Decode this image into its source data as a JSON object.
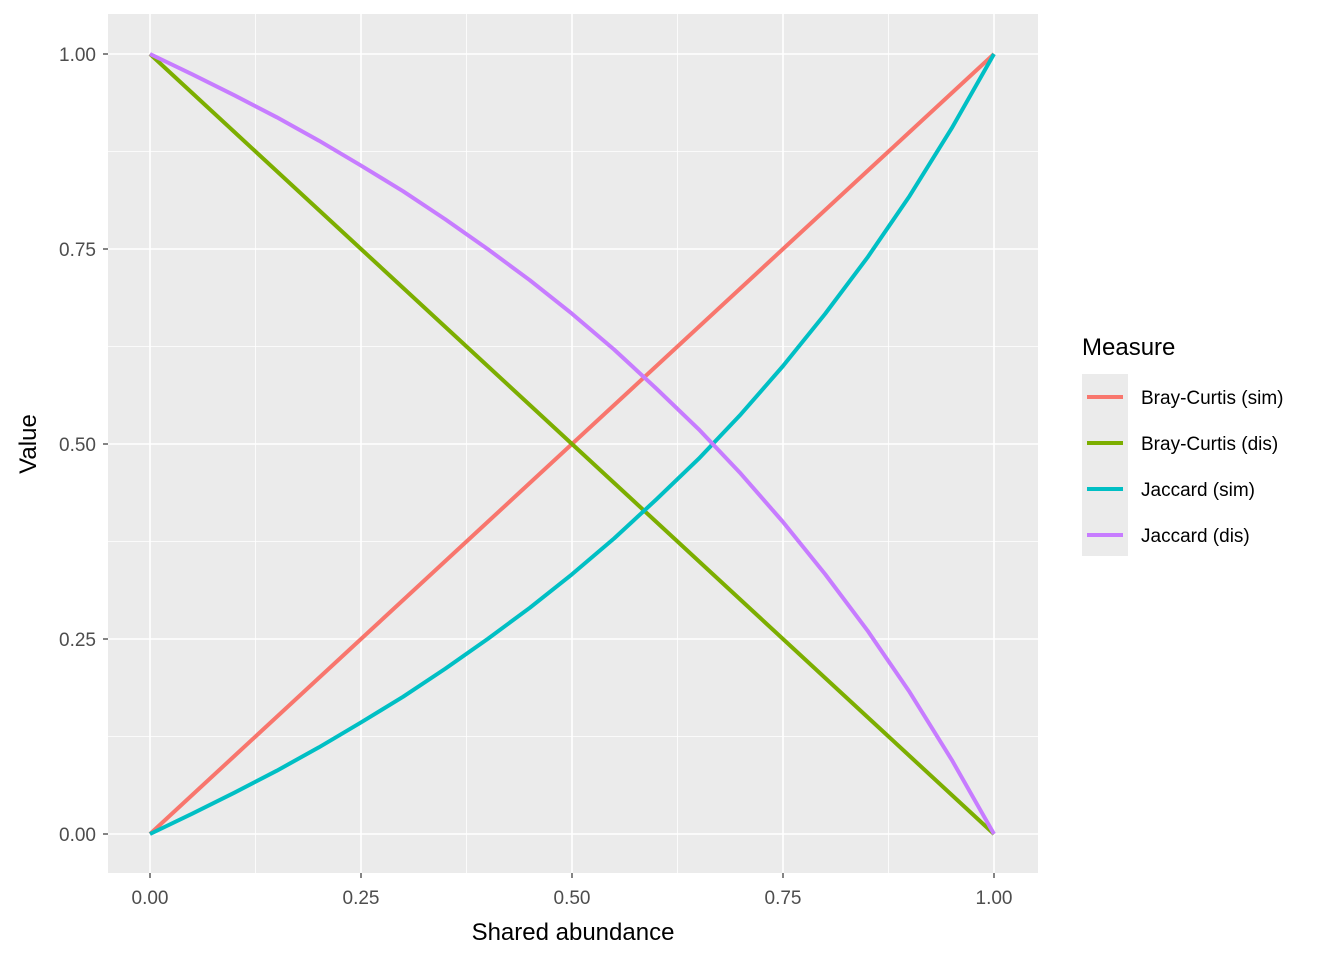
{
  "chart_data": {
    "type": "line",
    "xlabel": "Shared abundance",
    "ylabel": "Value",
    "xlim": [
      0,
      1
    ],
    "ylim": [
      0,
      1
    ],
    "x_ticks": [
      "0.00",
      "0.25",
      "0.50",
      "0.75",
      "1.00"
    ],
    "y_ticks": [
      "0.00",
      "0.25",
      "0.50",
      "0.75",
      "1.00"
    ],
    "grid": true,
    "legend_title": "Measure",
    "legend_position": "right",
    "x": [
      0,
      0.05,
      0.1,
      0.15,
      0.2,
      0.25,
      0.3,
      0.35,
      0.4,
      0.45,
      0.5,
      0.55,
      0.6,
      0.65,
      0.7,
      0.75,
      0.8,
      0.85,
      0.9,
      0.95,
      1
    ],
    "series": [
      {
        "name": "Bray-Curtis (sim)",
        "color": "#F8766D",
        "values": [
          0,
          0.05,
          0.1,
          0.15,
          0.2,
          0.25,
          0.3,
          0.35,
          0.4,
          0.45,
          0.5,
          0.55,
          0.6,
          0.65,
          0.7,
          0.75,
          0.8,
          0.85,
          0.9,
          0.95,
          1
        ]
      },
      {
        "name": "Bray-Curtis (dis)",
        "color": "#7CAE00",
        "values": [
          1,
          0.95,
          0.9,
          0.85,
          0.8,
          0.75,
          0.7,
          0.65,
          0.6,
          0.55,
          0.5,
          0.45,
          0.4,
          0.35,
          0.3,
          0.25,
          0.2,
          0.15,
          0.1,
          0.05,
          0
        ]
      },
      {
        "name": "Jaccard (sim)",
        "color": "#00BFC4",
        "values": [
          0,
          0.026,
          0.053,
          0.081,
          0.111,
          0.143,
          0.176,
          0.212,
          0.25,
          0.29,
          0.333,
          0.379,
          0.429,
          0.481,
          0.538,
          0.6,
          0.667,
          0.739,
          0.818,
          0.905,
          1
        ]
      },
      {
        "name": "Jaccard (dis)",
        "color": "#C77CFF",
        "values": [
          1,
          0.974,
          0.947,
          0.919,
          0.889,
          0.857,
          0.824,
          0.788,
          0.75,
          0.71,
          0.667,
          0.621,
          0.571,
          0.519,
          0.462,
          0.4,
          0.333,
          0.261,
          0.182,
          0.095,
          0
        ]
      }
    ]
  }
}
